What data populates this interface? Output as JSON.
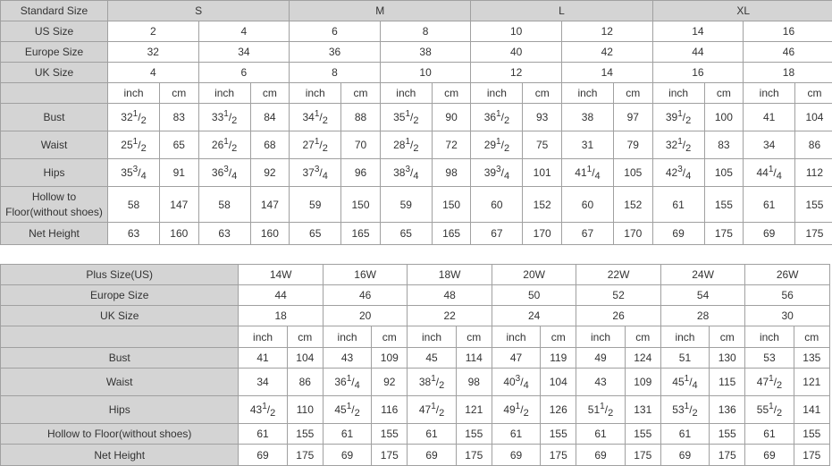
{
  "colors": {
    "header_bg": "#d4d4d4",
    "border": "#a0a0a0",
    "text": "#333333"
  },
  "table1": {
    "standard_label": "Standard Size",
    "groups": [
      "S",
      "M",
      "L",
      "XL"
    ],
    "us_label": "US Size",
    "us": [
      "2",
      "4",
      "6",
      "8",
      "10",
      "12",
      "14",
      "16"
    ],
    "eu_label": "Europe Size",
    "eu": [
      "32",
      "34",
      "36",
      "38",
      "40",
      "42",
      "44",
      "46"
    ],
    "uk_label": "UK Size",
    "uk": [
      "4",
      "6",
      "8",
      "10",
      "12",
      "14",
      "16",
      "18"
    ],
    "unit_inch": "inch",
    "unit_cm": "cm",
    "rows": [
      {
        "label": "Bust",
        "values": [
          "32 1/2",
          "83",
          "33 1/2",
          "84",
          "34 1/2",
          "88",
          "35 1/2",
          "90",
          "36 1/2",
          "93",
          "38",
          "97",
          "39 1/2",
          "100",
          "41",
          "104"
        ]
      },
      {
        "label": "Waist",
        "values": [
          "25 1/2",
          "65",
          "26 1/2",
          "68",
          "27 1/2",
          "70",
          "28 1/2",
          "72",
          "29 1/2",
          "75",
          "31",
          "79",
          "32 1/2",
          "83",
          "34",
          "86"
        ]
      },
      {
        "label": "Hips",
        "values": [
          "35 3/4",
          "91",
          "36 3/4",
          "92",
          "37 3/4",
          "96",
          "38 3/4",
          "98",
          "39 3/4",
          "101",
          "41 1/4",
          "105",
          "42 3/4",
          "105",
          "44 1/4",
          "112"
        ]
      },
      {
        "label": "Hollow to Floor(without shoes)",
        "values": [
          "58",
          "147",
          "58",
          "147",
          "59",
          "150",
          "59",
          "150",
          "60",
          "152",
          "60",
          "152",
          "61",
          "155",
          "61",
          "155"
        ]
      },
      {
        "label": "Net Height",
        "values": [
          "63",
          "160",
          "63",
          "160",
          "65",
          "165",
          "65",
          "165",
          "67",
          "170",
          "67",
          "170",
          "69",
          "175",
          "69",
          "175"
        ]
      }
    ]
  },
  "table2": {
    "plus_label": "Plus Size(US)",
    "plus": [
      "14W",
      "16W",
      "18W",
      "20W",
      "22W",
      "24W",
      "26W"
    ],
    "eu_label": "Europe Size",
    "eu": [
      "44",
      "46",
      "48",
      "50",
      "52",
      "54",
      "56"
    ],
    "uk_label": "UK Size",
    "uk": [
      "18",
      "20",
      "22",
      "24",
      "26",
      "28",
      "30"
    ],
    "unit_inch": "inch",
    "unit_cm": "cm",
    "rows": [
      {
        "label": "Bust",
        "values": [
          "41",
          "104",
          "43",
          "109",
          "45",
          "114",
          "47",
          "119",
          "49",
          "124",
          "51",
          "130",
          "53",
          "135"
        ]
      },
      {
        "label": "Waist",
        "values": [
          "34",
          "86",
          "36 1/4",
          "92",
          "38 1/2",
          "98",
          "40 3/4",
          "104",
          "43",
          "109",
          "45 1/4",
          "115",
          "47 1/2",
          "121"
        ]
      },
      {
        "label": "Hips",
        "values": [
          "43 1/2",
          "110",
          "45 1/2",
          "116",
          "47 1/2",
          "121",
          "49 1/2",
          "126",
          "51 1/2",
          "131",
          "53 1/2",
          "136",
          "55 1/2",
          "141"
        ]
      },
      {
        "label": "Hollow to Floor(without shoes)",
        "values": [
          "61",
          "155",
          "61",
          "155",
          "61",
          "155",
          "61",
          "155",
          "61",
          "155",
          "61",
          "155",
          "61",
          "155"
        ]
      },
      {
        "label": "Net Height",
        "values": [
          "69",
          "175",
          "69",
          "175",
          "69",
          "175",
          "69",
          "175",
          "69",
          "175",
          "69",
          "175",
          "69",
          "175"
        ]
      }
    ]
  }
}
